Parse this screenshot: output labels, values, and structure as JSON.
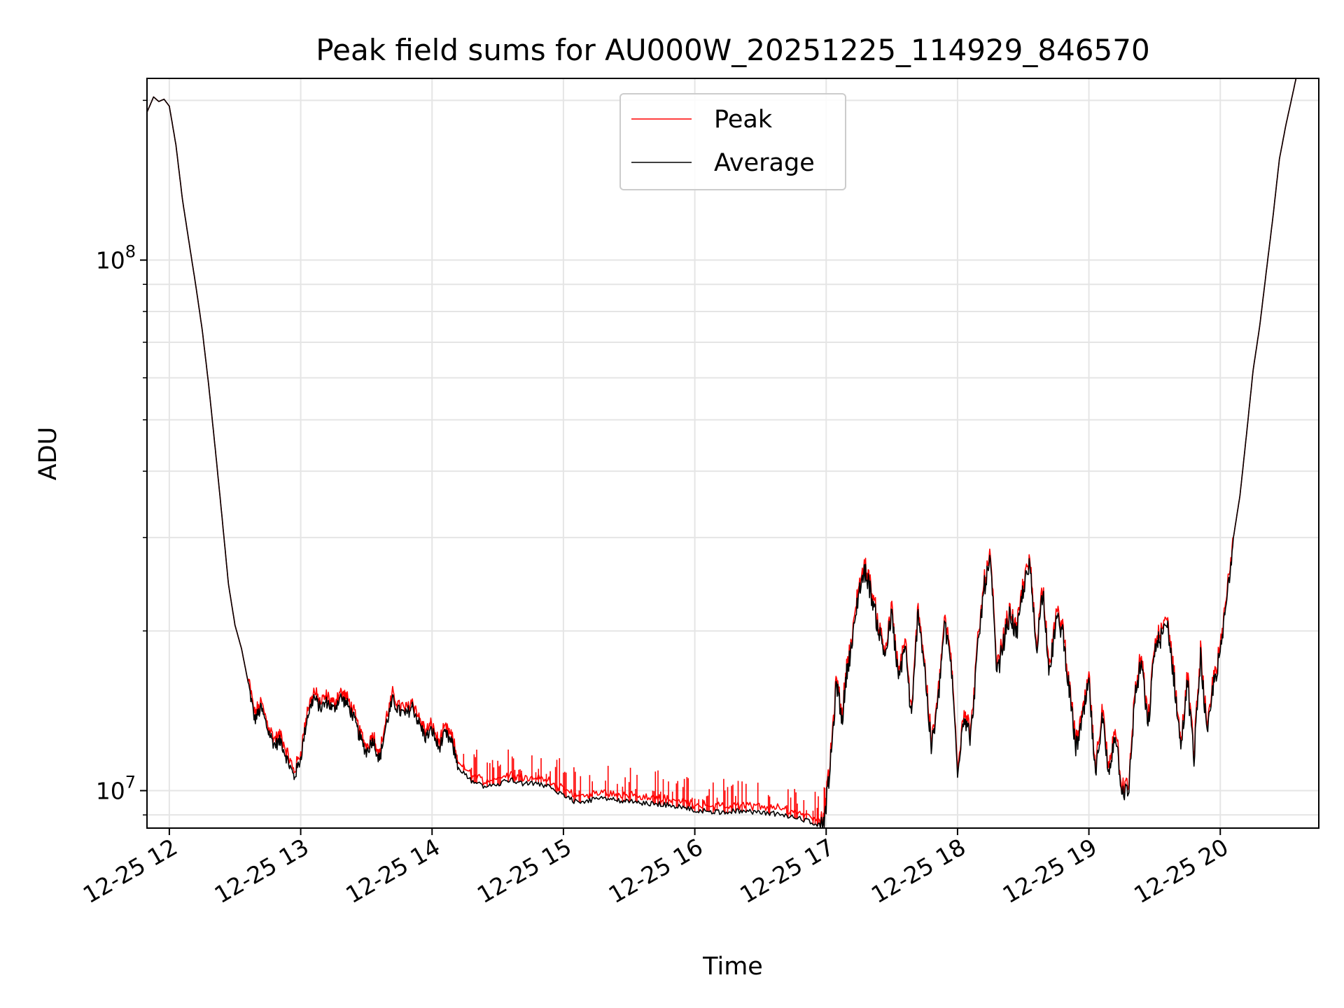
{
  "chart_data": {
    "type": "line",
    "title": "Peak field sums for AU000W_20251225_114929_846570",
    "xlabel": "Time",
    "ylabel": "ADU",
    "yscale": "log",
    "ylim": [
      8500000,
      220000000
    ],
    "xlim": [
      11.83,
      20.75
    ],
    "grid": true,
    "legend": {
      "position": "top-center",
      "entries": [
        "Peak",
        "Average"
      ]
    },
    "x_ticks": [
      {
        "value": 12,
        "label": "12-25 12"
      },
      {
        "value": 13,
        "label": "12-25 13"
      },
      {
        "value": 14,
        "label": "12-25 14"
      },
      {
        "value": 15,
        "label": "12-25 15"
      },
      {
        "value": 16,
        "label": "12-25 16"
      },
      {
        "value": 17,
        "label": "12-25 17"
      },
      {
        "value": 18,
        "label": "12-25 18"
      },
      {
        "value": 19,
        "label": "12-25 19"
      },
      {
        "value": 20,
        "label": "12-25 20"
      }
    ],
    "y_ticks": [
      {
        "value": 10000000,
        "base": "10",
        "exp": "7"
      },
      {
        "value": 100000000,
        "base": "10",
        "exp": "8"
      }
    ],
    "series": [
      {
        "name": "Average",
        "color": "#000000",
        "points": [
          [
            11.83,
            190000000
          ],
          [
            11.88,
            203000000
          ],
          [
            11.92,
            199000000
          ],
          [
            11.96,
            201000000
          ],
          [
            12.0,
            195000000
          ],
          [
            12.05,
            165000000
          ],
          [
            12.1,
            130000000
          ],
          [
            12.15,
            108000000
          ],
          [
            12.2,
            90000000
          ],
          [
            12.25,
            74000000
          ],
          [
            12.3,
            58000000
          ],
          [
            12.35,
            44000000
          ],
          [
            12.4,
            33000000
          ],
          [
            12.45,
            24500000
          ],
          [
            12.5,
            20500000
          ],
          [
            12.55,
            18500000
          ],
          [
            12.6,
            16000000
          ],
          [
            12.65,
            13600000
          ],
          [
            12.7,
            14300000
          ],
          [
            12.75,
            13000000
          ],
          [
            12.8,
            12200000
          ],
          [
            12.85,
            12400000
          ],
          [
            12.9,
            11400000
          ],
          [
            12.95,
            10600000
          ],
          [
            13.0,
            11500000
          ],
          [
            13.05,
            13800000
          ],
          [
            13.1,
            15000000
          ],
          [
            13.15,
            14300000
          ],
          [
            13.2,
            14700000
          ],
          [
            13.25,
            14200000
          ],
          [
            13.3,
            15000000
          ],
          [
            13.35,
            14600000
          ],
          [
            13.4,
            13800000
          ],
          [
            13.45,
            12600000
          ],
          [
            13.5,
            11800000
          ],
          [
            13.55,
            12500000
          ],
          [
            13.6,
            11400000
          ],
          [
            13.65,
            13300000
          ],
          [
            13.7,
            14800000
          ],
          [
            13.75,
            14100000
          ],
          [
            13.8,
            13900000
          ],
          [
            13.85,
            14400000
          ],
          [
            13.9,
            13400000
          ],
          [
            13.95,
            12600000
          ],
          [
            14.0,
            13000000
          ],
          [
            14.05,
            12000000
          ],
          [
            14.1,
            12800000
          ],
          [
            14.15,
            12300000
          ],
          [
            14.2,
            11100000
          ],
          [
            14.3,
            10400000
          ],
          [
            14.4,
            10200000
          ],
          [
            14.5,
            10300000
          ],
          [
            14.6,
            10500000
          ],
          [
            14.7,
            10300000
          ],
          [
            14.8,
            10300000
          ],
          [
            14.9,
            10200000
          ],
          [
            15.0,
            9800000
          ],
          [
            15.1,
            9500000
          ],
          [
            15.2,
            9600000
          ],
          [
            15.3,
            9700000
          ],
          [
            15.4,
            9600000
          ],
          [
            15.5,
            9550000
          ],
          [
            15.6,
            9450000
          ],
          [
            15.7,
            9450000
          ],
          [
            15.8,
            9400000
          ],
          [
            15.9,
            9300000
          ],
          [
            16.0,
            9200000
          ],
          [
            16.1,
            9150000
          ],
          [
            16.2,
            9100000
          ],
          [
            16.3,
            9150000
          ],
          [
            16.4,
            9150000
          ],
          [
            16.5,
            9100000
          ],
          [
            16.6,
            9050000
          ],
          [
            16.7,
            8950000
          ],
          [
            16.8,
            8850000
          ],
          [
            16.9,
            8700000
          ],
          [
            16.98,
            8550000
          ],
          [
            17.03,
            11000000
          ],
          [
            17.08,
            16000000
          ],
          [
            17.12,
            13500000
          ],
          [
            17.16,
            17000000
          ],
          [
            17.2,
            19000000
          ],
          [
            17.25,
            24000000
          ],
          [
            17.3,
            26000000
          ],
          [
            17.35,
            23000000
          ],
          [
            17.4,
            20000000
          ],
          [
            17.45,
            18000000
          ],
          [
            17.5,
            21500000
          ],
          [
            17.55,
            16000000
          ],
          [
            17.6,
            19000000
          ],
          [
            17.65,
            13500000
          ],
          [
            17.7,
            22000000
          ],
          [
            17.75,
            17000000
          ],
          [
            17.8,
            12000000
          ],
          [
            17.85,
            14500000
          ],
          [
            17.9,
            20500000
          ],
          [
            17.95,
            17500000
          ],
          [
            18.0,
            11000000
          ],
          [
            18.05,
            14000000
          ],
          [
            18.1,
            12500000
          ],
          [
            18.15,
            18000000
          ],
          [
            18.2,
            24000000
          ],
          [
            18.25,
            27000000
          ],
          [
            18.3,
            16500000
          ],
          [
            18.35,
            19000000
          ],
          [
            18.4,
            21500000
          ],
          [
            18.45,
            19500000
          ],
          [
            18.5,
            24000000
          ],
          [
            18.55,
            26500000
          ],
          [
            18.6,
            18500000
          ],
          [
            18.65,
            24000000
          ],
          [
            18.7,
            16500000
          ],
          [
            18.75,
            21000000
          ],
          [
            18.8,
            20000000
          ],
          [
            18.85,
            15500000
          ],
          [
            18.9,
            12000000
          ],
          [
            18.95,
            13500000
          ],
          [
            19.0,
            16000000
          ],
          [
            19.05,
            10500000
          ],
          [
            19.1,
            14000000
          ],
          [
            19.15,
            10600000
          ],
          [
            19.2,
            13000000
          ],
          [
            19.25,
            10100000
          ],
          [
            19.3,
            9800000
          ],
          [
            19.35,
            15000000
          ],
          [
            19.4,
            17500000
          ],
          [
            19.45,
            13000000
          ],
          [
            19.5,
            18500000
          ],
          [
            19.55,
            19500000
          ],
          [
            19.6,
            20500000
          ],
          [
            19.65,
            16000000
          ],
          [
            19.7,
            12000000
          ],
          [
            19.75,
            16000000
          ],
          [
            19.8,
            11500000
          ],
          [
            19.85,
            18000000
          ],
          [
            19.9,
            12500000
          ],
          [
            19.95,
            16000000
          ],
          [
            20.0,
            18000000
          ],
          [
            20.05,
            23000000
          ],
          [
            20.1,
            30000000
          ],
          [
            20.15,
            36000000
          ],
          [
            20.2,
            47000000
          ],
          [
            20.25,
            62000000
          ],
          [
            20.3,
            75000000
          ],
          [
            20.35,
            95000000
          ],
          [
            20.4,
            120000000
          ],
          [
            20.45,
            155000000
          ],
          [
            20.5,
            180000000
          ],
          [
            20.55,
            205000000
          ],
          [
            20.58,
            222000000
          ]
        ]
      }
    ]
  }
}
